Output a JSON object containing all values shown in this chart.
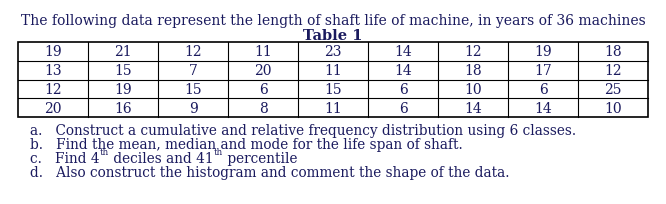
{
  "title": "The following data represent the length of shaft life of machine, in years of 36 machines",
  "table_title": "Table 1",
  "table_data": [
    [
      19,
      21,
      12,
      11,
      23,
      14,
      12,
      19,
      18
    ],
    [
      13,
      15,
      7,
      20,
      11,
      14,
      18,
      17,
      12
    ],
    [
      12,
      19,
      15,
      6,
      15,
      6,
      10,
      6,
      25
    ],
    [
      20,
      16,
      9,
      8,
      11,
      6,
      14,
      14,
      10
    ]
  ],
  "item_a": "a.   Construct a cumulative and relative frequency distribution using 6 classes.",
  "item_b": "b.   Find the mean, median and mode for the life span of shaft.",
  "item_c_pre": "c.   Find 4",
  "item_c_sup1": "th",
  "item_c_mid": " deciles and 41",
  "item_c_sup2": "th",
  "item_c_suf": " percentile",
  "item_d": "d.   Also construct the histogram and comment the shape of the data.",
  "bg_color": "#ffffff",
  "text_color": "#1a1a5e",
  "table_border_color": "#000000",
  "font_size_title": 10.0,
  "font_size_table_title": 10.5,
  "font_size_table": 10.0,
  "font_size_items": 9.8
}
